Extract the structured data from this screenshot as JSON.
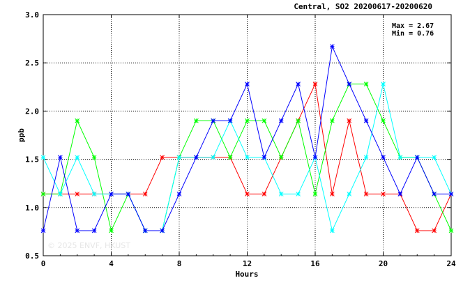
{
  "chart_data": {
    "type": "line",
    "title": "Central, SO2 20200617-20200620",
    "xlabel": "Hours",
    "ylabel": "ppb",
    "xlim": [
      0,
      24
    ],
    "ylim": [
      0.5,
      3.0
    ],
    "x_ticks": [
      "0",
      "4",
      "8",
      "12",
      "16",
      "20",
      "24"
    ],
    "y_ticks": [
      "0.5",
      "1.0",
      "1.5",
      "2.0",
      "2.5",
      "3.0"
    ],
    "grid": true,
    "annotations": [
      "Max = 2.67",
      "Min = 0.76"
    ],
    "watermark": "© 2025 ENVF, HKUST",
    "x": [
      0,
      1,
      2,
      3,
      4,
      5,
      6,
      7,
      8,
      9,
      10,
      11,
      12,
      13,
      14,
      15,
      16,
      17,
      18,
      19,
      20,
      21,
      22,
      23,
      24
    ],
    "series": [
      {
        "color": "#ff0000",
        "values": [
          1.14,
          1.14,
          1.14,
          1.14,
          1.14,
          1.14,
          1.14,
          1.52,
          1.52,
          1.52,
          1.52,
          1.52,
          1.14,
          1.14,
          1.52,
          1.9,
          2.28,
          1.14,
          1.9,
          1.14,
          1.14,
          1.14,
          0.76,
          0.76,
          1.14
        ]
      },
      {
        "color": "#00ff00",
        "values": [
          1.14,
          1.14,
          1.9,
          1.52,
          0.76,
          1.14,
          0.76,
          0.76,
          1.52,
          1.9,
          1.9,
          1.52,
          1.9,
          1.9,
          1.52,
          1.9,
          1.14,
          1.9,
          2.28,
          2.28,
          1.9,
          1.52,
          1.52,
          1.14,
          0.76
        ]
      },
      {
        "color": "#00ffff",
        "values": [
          1.52,
          1.14,
          1.52,
          1.14,
          1.14,
          1.14,
          0.76,
          0.76,
          1.52,
          1.52,
          1.52,
          1.9,
          1.52,
          1.52,
          1.14,
          1.14,
          1.52,
          0.76,
          1.14,
          1.52,
          2.28,
          1.52,
          1.52,
          1.52,
          1.14
        ]
      },
      {
        "color": "#0000ff",
        "values": [
          0.76,
          1.52,
          0.76,
          0.76,
          1.14,
          1.14,
          0.76,
          0.76,
          1.14,
          1.52,
          1.9,
          1.9,
          2.28,
          1.52,
          1.9,
          2.28,
          1.52,
          2.67,
          2.28,
          1.9,
          1.52,
          1.14,
          1.52,
          1.14,
          1.14
        ]
      }
    ]
  }
}
